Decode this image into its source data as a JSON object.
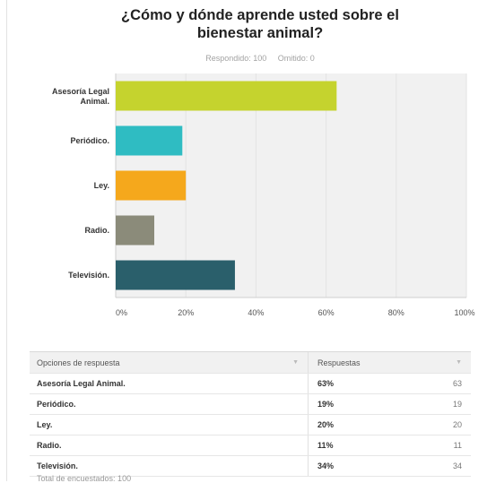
{
  "header": {
    "title": "¿Cómo y dónde aprende usted sobre el bienestar animal?",
    "answered_label": "Respondido: 100",
    "skipped_label": "Omitido: 0"
  },
  "chart_data": {
    "type": "bar",
    "orientation": "horizontal",
    "title": "¿Cómo y dónde aprende usted sobre el bienestar animal?",
    "categories": [
      "Asesoría Legal Animal.",
      "Periódico.",
      "Ley.",
      "Radio.",
      "Televisión."
    ],
    "values": [
      63,
      19,
      20,
      11,
      34
    ],
    "colors": [
      "#c5d32e",
      "#2fbcc2",
      "#f5a81c",
      "#8b8b7a",
      "#2a5f6b"
    ],
    "xticks": [
      "0%",
      "20%",
      "40%",
      "60%",
      "80%",
      "100%"
    ],
    "xlim": [
      0,
      100
    ],
    "grid": true,
    "plot_background": "#f1f1f1"
  },
  "table": {
    "header_option": "Opciones de respuesta",
    "header_responses": "Respuestas",
    "rows": [
      {
        "label": "Asesoría Legal Animal.",
        "percent": "63%",
        "count": "63"
      },
      {
        "label": "Periódico.",
        "percent": "19%",
        "count": "19"
      },
      {
        "label": "Ley.",
        "percent": "20%",
        "count": "20"
      },
      {
        "label": "Radio.",
        "percent": "11%",
        "count": "11"
      },
      {
        "label": "Televisión.",
        "percent": "34%",
        "count": "34"
      }
    ],
    "total_label": "Total de encuestados: 100"
  }
}
